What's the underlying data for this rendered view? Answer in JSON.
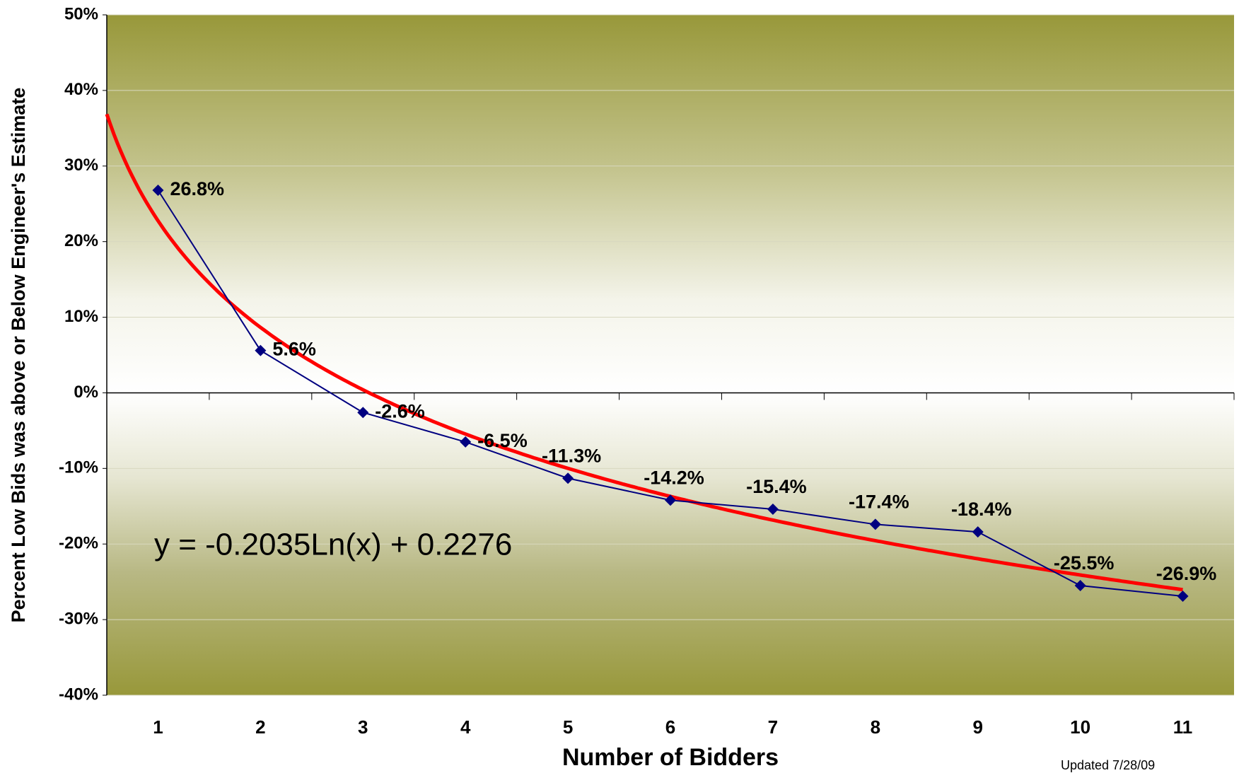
{
  "chart_data": {
    "type": "line",
    "x": [
      1,
      2,
      3,
      4,
      5,
      6,
      7,
      8,
      9,
      10,
      11
    ],
    "xlim": [
      0.5,
      11.5
    ],
    "xlabel": "Number of Bidders",
    "ylabel": "Percent Low Bids was above or Below Engineer's Estimate",
    "ylim": [
      -0.4,
      0.5
    ],
    "yticks": [
      {
        "value": -0.4,
        "label": "-40%"
      },
      {
        "value": -0.3,
        "label": "-30%"
      },
      {
        "value": -0.2,
        "label": "-20%"
      },
      {
        "value": -0.1,
        "label": "-10%"
      },
      {
        "value": 0,
        "label": "0%"
      },
      {
        "value": 0.1,
        "label": "10%"
      },
      {
        "value": 0.2,
        "label": "20%"
      },
      {
        "value": 0.3,
        "label": "30%"
      },
      {
        "value": 0.4,
        "label": "40%"
      },
      {
        "value": 0.5,
        "label": "50%"
      }
    ],
    "grid": true,
    "series": [
      {
        "color": "#000080",
        "values": [
          0.268,
          0.056,
          -0.026,
          -0.065,
          -0.113,
          -0.142,
          -0.154,
          -0.174,
          -0.184,
          -0.255,
          -0.269
        ],
        "value_labels": [
          "26.8%",
          "5.6%",
          "-2.6%",
          "-6.5%",
          "-11.3%",
          "-14.2%",
          "-15.4%",
          "-17.4%",
          "-18.4%",
          "-25.5%",
          "-26.9%"
        ]
      }
    ],
    "trendline": {
      "type": "log",
      "slope": -0.2035,
      "intercept": 0.2276,
      "color": "#ff0000",
      "label": "y = -0.2035Ln(x) + 0.2276"
    },
    "note": "Updated 7/28/09"
  }
}
